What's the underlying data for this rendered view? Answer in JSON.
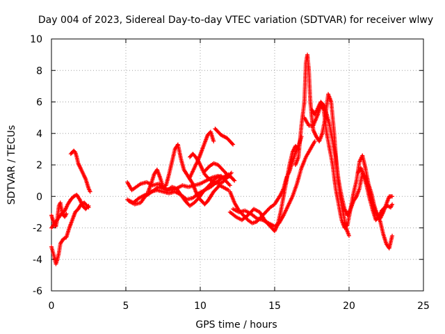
{
  "chart_data": {
    "type": "scatter",
    "title": "Day 004 of 2023, Sidereal Day-to-day VTEC variation (SDTVAR) for receiver wlwy",
    "xlabel": "GPS time / hours",
    "ylabel": "SDTVAR / TECUs",
    "xlim": [
      0,
      25
    ],
    "ylim": [
      -6,
      10
    ],
    "xticks": [
      "0",
      "5",
      "10",
      "15",
      "20",
      "25"
    ],
    "yticks": [
      "-6",
      "-4",
      "-2",
      "0",
      "2",
      "4",
      "6",
      "8",
      "10"
    ],
    "grid": true,
    "marker": "+",
    "color": "#ff0000",
    "series": [
      {
        "name": "a0",
        "x": [
          0.0,
          0.1,
          0.2,
          0.3,
          0.4,
          0.5,
          0.6,
          0.7,
          0.8,
          0.9,
          1.0
        ],
        "y": [
          -1.2,
          -1.5,
          -1.8,
          -1.9,
          -1.4,
          -0.6,
          -0.4,
          -0.9,
          -1.2,
          -1.3,
          -1.1
        ]
      },
      {
        "name": "a1",
        "x": [
          0.0,
          0.15,
          0.3,
          0.4,
          0.5,
          0.6,
          0.8,
          1.0,
          1.2,
          1.4,
          1.6,
          1.8,
          2.0,
          2.2,
          2.4,
          2.5
        ],
        "y": [
          -3.2,
          -3.7,
          -4.3,
          -4.0,
          -3.6,
          -3.0,
          -2.7,
          -2.6,
          -2.0,
          -1.5,
          -1.0,
          -0.8,
          -0.5,
          -0.4,
          -0.6,
          -0.7
        ]
      },
      {
        "name": "a2",
        "x": [
          0.0,
          0.3,
          0.6,
          0.9,
          1.1,
          1.3,
          1.5,
          1.7,
          1.9,
          2.1,
          2.3,
          2.5
        ],
        "y": [
          -2.0,
          -1.6,
          -1.2,
          -0.9,
          -0.5,
          -0.2,
          0.0,
          0.1,
          -0.2,
          -0.6,
          -0.8,
          -0.6
        ]
      },
      {
        "name": "a3",
        "x": [
          1.3,
          1.4,
          1.5,
          1.6,
          1.7,
          1.8,
          1.9,
          2.0,
          2.1,
          2.2,
          2.3,
          2.4,
          2.5,
          2.6
        ],
        "y": [
          2.7,
          2.8,
          2.9,
          2.8,
          2.5,
          2.1,
          1.9,
          1.7,
          1.5,
          1.3,
          1.1,
          0.8,
          0.5,
          0.3
        ]
      },
      {
        "name": "b0",
        "x": [
          5.1,
          5.4,
          5.7,
          6.0,
          6.4,
          6.8,
          7.2,
          7.6,
          8.0,
          8.4,
          8.8,
          9.2,
          9.6,
          10.0,
          10.4,
          10.8,
          11.2,
          11.6,
          12.0
        ],
        "y": [
          0.9,
          0.4,
          0.6,
          0.8,
          0.9,
          0.7,
          0.8,
          0.5,
          0.4,
          0.5,
          0.7,
          0.6,
          0.7,
          0.8,
          1.0,
          1.2,
          1.3,
          1.1,
          1.3
        ]
      },
      {
        "name": "b1",
        "x": [
          5.1,
          5.5,
          5.9,
          6.3,
          6.7,
          7.1,
          7.5,
          7.9,
          8.3,
          8.7,
          9.1,
          9.5,
          9.9,
          10.3,
          10.7,
          11.1,
          11.5,
          11.9
        ],
        "y": [
          -0.2,
          -0.4,
          -0.1,
          0.1,
          0.3,
          0.4,
          0.3,
          0.2,
          0.3,
          0.1,
          -0.2,
          -0.1,
          0.2,
          0.4,
          0.6,
          0.9,
          1.2,
          1.4
        ]
      },
      {
        "name": "b2",
        "x": [
          5.2,
          5.6,
          6.0,
          6.3,
          6.6,
          6.9,
          7.2,
          7.5,
          7.8,
          8.1,
          8.4,
          8.7,
          9.0,
          9.3,
          9.6,
          9.9,
          10.2,
          10.5,
          10.8,
          11.1,
          11.4,
          11.7,
          12.0
        ],
        "y": [
          -0.3,
          -0.5,
          -0.4,
          0.0,
          0.2,
          0.4,
          0.6,
          0.5,
          0.4,
          0.6,
          0.5,
          0.1,
          -0.3,
          -0.6,
          -0.4,
          -0.1,
          0.3,
          0.6,
          0.9,
          1.2,
          1.3,
          1.0,
          0.7
        ]
      },
      {
        "name": "b3",
        "x": [
          6.5,
          6.7,
          6.9,
          7.1,
          7.3,
          7.5,
          7.7,
          7.9,
          8.1,
          8.3,
          8.5,
          8.7,
          8.9,
          9.1,
          9.3,
          9.5,
          9.7,
          9.9,
          10.1,
          10.3,
          10.5,
          10.7,
          10.9,
          11.1,
          11.3,
          11.5,
          11.7,
          11.9
        ],
        "y": [
          0.3,
          0.8,
          1.4,
          1.7,
          1.2,
          0.6,
          0.7,
          1.4,
          2.2,
          3.0,
          3.3,
          2.4,
          1.7,
          1.4,
          1.1,
          0.8,
          0.3,
          -0.1,
          -0.3,
          -0.5,
          -0.3,
          0.0,
          0.3,
          0.5,
          0.7,
          0.6,
          0.5,
          0.4
        ]
      },
      {
        "name": "b4",
        "x": [
          9.3,
          9.5,
          9.7,
          9.9,
          10.1,
          10.3,
          10.6,
          10.9,
          11.2,
          11.5,
          11.8,
          12.1
        ],
        "y": [
          2.5,
          2.7,
          2.5,
          2.2,
          1.8,
          1.4,
          1.1,
          0.9,
          0.8,
          0.9,
          1.2,
          1.5
        ]
      },
      {
        "name": "b5",
        "x": [
          9.3,
          9.6,
          9.9,
          10.1,
          10.3,
          10.5,
          10.7,
          10.9
        ],
        "y": [
          1.2,
          1.8,
          2.4,
          2.9,
          3.4,
          3.9,
          4.1,
          3.5
        ]
      },
      {
        "name": "b6",
        "x": [
          10.3,
          10.6,
          10.9,
          11.2,
          11.5,
          11.8,
          12.1,
          12.3
        ],
        "y": [
          1.6,
          1.9,
          2.1,
          2.0,
          1.7,
          1.4,
          1.2,
          1.0
        ]
      },
      {
        "name": "b7",
        "x": [
          11.0,
          11.2,
          11.4,
          11.6,
          11.8,
          12.0,
          12.2
        ],
        "y": [
          4.3,
          4.1,
          3.9,
          3.8,
          3.7,
          3.5,
          3.3
        ]
      },
      {
        "name": "c0",
        "x": [
          12.0,
          12.3,
          12.6,
          12.9,
          13.2,
          13.5,
          13.8,
          14.1,
          14.4,
          14.7,
          15.0,
          15.2,
          15.4,
          15.6,
          15.8,
          16.0,
          16.2,
          16.4,
          16.6,
          16.8
        ],
        "y": [
          0.3,
          -0.4,
          -0.9,
          -1.2,
          -1.5,
          -1.7,
          -1.6,
          -1.3,
          -1.0,
          -0.7,
          -0.5,
          -0.2,
          0.1,
          0.5,
          1.2,
          1.6,
          2.2,
          2.8,
          3.2,
          3.8
        ]
      },
      {
        "name": "c1",
        "x": [
          12.0,
          12.4,
          12.8,
          13.2,
          13.6,
          14.0,
          14.4,
          14.8,
          15.0,
          15.2,
          15.4,
          15.6,
          15.8,
          16.0,
          16.2,
          16.4,
          16.6
        ],
        "y": [
          -1.0,
          -1.3,
          -1.5,
          -1.2,
          -0.8,
          -1.0,
          -1.6,
          -2.0,
          -2.2,
          -1.8,
          -1.0,
          0.0,
          1.0,
          2.0,
          2.8,
          3.2,
          3.0
        ]
      },
      {
        "name": "c2",
        "x": [
          12.2,
          12.6,
          13.0,
          13.4,
          13.8,
          14.2,
          14.6,
          15.0,
          15.3,
          15.6,
          15.9,
          16.2,
          16.5,
          16.8,
          17.1,
          17.4,
          17.7
        ],
        "y": [
          -0.8,
          -1.0,
          -0.9,
          -1.1,
          -1.4,
          -1.5,
          -1.7,
          -1.9,
          -1.7,
          -1.2,
          -0.6,
          0.0,
          0.8,
          1.8,
          2.5,
          3.0,
          3.5
        ]
      },
      {
        "name": "d0",
        "x": [
          16.4,
          16.6,
          16.8,
          17.0,
          17.1,
          17.2,
          17.3,
          17.4,
          17.5,
          17.6,
          17.8,
          18.0,
          18.2,
          18.4,
          18.6,
          18.8,
          19.0,
          19.2,
          19.4,
          19.6,
          19.8,
          20.0
        ],
        "y": [
          2.0,
          2.5,
          4.5,
          6.0,
          8.5,
          9.0,
          8.0,
          6.0,
          5.0,
          4.2,
          3.8,
          3.5,
          4.0,
          5.0,
          6.5,
          6.0,
          4.0,
          1.5,
          0.0,
          -1.0,
          -2.0,
          -2.5
        ]
      },
      {
        "name": "d1",
        "x": [
          17.0,
          17.3,
          17.6,
          17.9,
          18.1,
          18.3,
          18.5,
          18.7,
          18.9,
          19.1,
          19.3,
          19.5,
          19.7,
          19.9,
          20.1,
          20.3,
          20.5,
          20.7,
          20.9,
          21.1,
          21.3,
          21.5,
          21.7,
          21.9,
          22.1,
          22.3,
          22.5,
          22.7,
          22.9
        ],
        "y": [
          5.0,
          4.5,
          4.5,
          5.2,
          5.8,
          5.5,
          4.0,
          3.0,
          2.0,
          0.5,
          -0.5,
          -1.5,
          -2.0,
          -1.8,
          -0.8,
          0.2,
          1.0,
          2.2,
          2.6,
          1.8,
          0.8,
          0.2,
          -0.6,
          -1.2,
          -1.6,
          -2.4,
          -3.0,
          -3.3,
          -2.5
        ]
      },
      {
        "name": "d2",
        "x": [
          17.5,
          17.7,
          17.9,
          18.1,
          18.3,
          18.5,
          18.7,
          18.9,
          19.1,
          19.3,
          19.5,
          19.7,
          19.9,
          20.1,
          20.3,
          20.5,
          20.7,
          20.9,
          21.1,
          21.3,
          21.5,
          21.7,
          21.9,
          22.1,
          22.3,
          22.5,
          22.7,
          22.9
        ],
        "y": [
          5.5,
          5.2,
          5.6,
          6.0,
          5.8,
          5.2,
          4.5,
          3.5,
          2.5,
          1.0,
          0.0,
          -0.8,
          -1.2,
          -0.8,
          -0.3,
          0.0,
          0.5,
          1.5,
          1.2,
          0.6,
          -0.2,
          -0.8,
          -1.2,
          -1.4,
          -1.0,
          -0.5,
          0.0,
          0.0
        ]
      },
      {
        "name": "d3",
        "x": [
          20.6,
          20.8,
          21.0,
          21.2,
          21.4,
          21.6,
          21.8,
          22.0,
          22.2,
          22.4,
          22.6,
          22.8,
          22.9
        ],
        "y": [
          1.5,
          1.8,
          1.3,
          0.6,
          -0.2,
          -0.9,
          -1.5,
          -1.3,
          -0.9,
          -0.7,
          -0.6,
          -0.7,
          -0.5
        ]
      }
    ]
  }
}
